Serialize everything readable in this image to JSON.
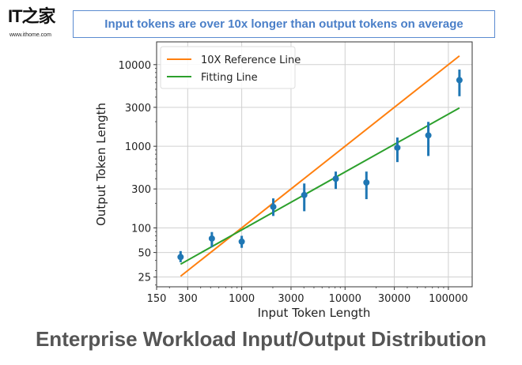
{
  "logo": {
    "mark": "IT之家",
    "url": "www.ithome.com"
  },
  "banner": "Input tokens are over 10x longer than output tokens on average",
  "title": "Enterprise Workload Input/Output Distribution",
  "chart_data": {
    "type": "scatter",
    "xscale": "log",
    "yscale": "log",
    "xlabel": "Input Token Length",
    "ylabel": "Output Token Length",
    "xlim": [
      150,
      170000
    ],
    "ylim": [
      19,
      19000
    ],
    "grid": true,
    "legend_placement": "top-left",
    "xticks": [
      150,
      300,
      1000,
      3000,
      10000,
      30000,
      100000
    ],
    "xtick_labels": [
      "150",
      "300",
      "1000",
      "3000",
      "10000",
      "30000",
      "100000"
    ],
    "yticks": [
      25,
      50,
      100,
      300,
      1000,
      3000,
      10000
    ],
    "ytick_labels": [
      "25",
      "50",
      "100",
      "300",
      "1000",
      "3000",
      "10000"
    ],
    "points": {
      "name": "Workload",
      "color": "#1f77b4",
      "x": [
        256,
        514,
        1000,
        2020,
        4030,
        8130,
        16100,
        32100,
        64000,
        128000
      ],
      "y": [
        44,
        74,
        68,
        181,
        253,
        400,
        360,
        960,
        1360,
        6460
      ],
      "y_low": [
        38,
        58,
        57,
        140,
        160,
        300,
        225,
        640,
        760,
        4100
      ],
      "y_high": [
        52,
        89,
        80,
        230,
        350,
        490,
        490,
        1280,
        1990,
        8700
      ]
    },
    "series": [
      {
        "name": "10X Reference Line",
        "color": "#ff7f0e",
        "x": [
          256,
          128000
        ],
        "y": [
          25.6,
          12800
        ]
      },
      {
        "name": "Fitting Line",
        "color": "#2ca02c",
        "x": [
          256,
          128000
        ],
        "y": [
          36,
          2950
        ]
      }
    ]
  }
}
